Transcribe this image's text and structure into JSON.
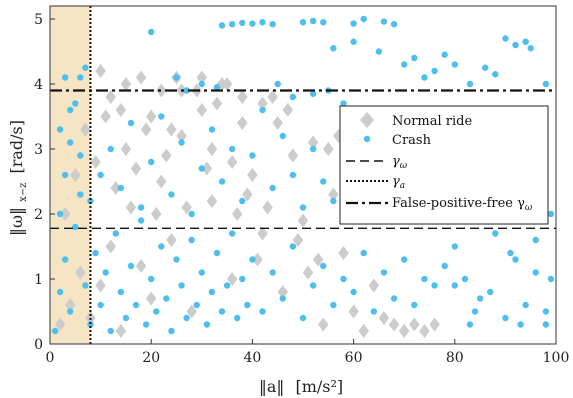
{
  "chart_data": {
    "type": "scatter",
    "xlim": [
      0,
      100
    ],
    "ylim": [
      0,
      5.2
    ],
    "xticks": [
      0,
      20,
      40,
      60,
      80,
      100
    ],
    "yticks": [
      0,
      1,
      2,
      3,
      4,
      5
    ],
    "xticks_label": [
      "0",
      "20",
      "40",
      "60",
      "80",
      "100"
    ],
    "yticks_label": [
      "0",
      "1",
      "2",
      "3",
      "4",
      "5"
    ],
    "xlabel_main": "‖a‖",
    "xlabel_unit": "[m/s²]",
    "ylabel_main": "‖ω‖",
    "ylabel_sub": "x−z",
    "ylabel_unit": "[rad/s]",
    "grid": false,
    "legend_position": "right",
    "colors": {
      "normal": "#cccccc",
      "crash": "#4dbeee",
      "shade": "#f2dcb0"
    },
    "shaded_region": {
      "x": [
        0,
        8
      ],
      "y": [
        0,
        5.2
      ]
    },
    "threshold_lines": {
      "gamma_omega": 1.78,
      "gamma_a": 8,
      "false_positive_free_gamma_omega": 3.9
    },
    "legend": {
      "normal": "Normal ride",
      "crash": "Crash",
      "gamma_omega": "γ",
      "gamma_omega_sub": "ω",
      "gamma_a": "γ",
      "gamma_a_sub": "a",
      "fpf_text": "False-positive-free γ",
      "fpf_sub": "ω"
    },
    "series": [
      {
        "name": "Normal ride",
        "marker": "diamond",
        "points": [
          [
            2,
            0.3
          ],
          [
            4,
            0.6
          ],
          [
            6,
            1.1
          ],
          [
            8,
            0.4
          ],
          [
            10,
            0.9
          ],
          [
            12,
            1.5
          ],
          [
            14,
            0.2
          ],
          [
            16,
            2.1
          ],
          [
            18,
            1.2
          ],
          [
            20,
            0.7
          ],
          [
            22,
            2.5
          ],
          [
            24,
            1.6
          ],
          [
            26,
            3.2
          ],
          [
            28,
            0.5
          ],
          [
            30,
            3.6
          ],
          [
            32,
            2.2
          ],
          [
            34,
            4.0
          ],
          [
            36,
            1.0
          ],
          [
            38,
            3.4
          ],
          [
            40,
            2.6
          ],
          [
            42,
            1.7
          ],
          [
            44,
            3.8
          ],
          [
            46,
            0.8
          ],
          [
            48,
            2.9
          ],
          [
            50,
            1.9
          ],
          [
            52,
            3.1
          ],
          [
            54,
            0.3
          ],
          [
            56,
            2.3
          ],
          [
            58,
            1.4
          ],
          [
            60,
            0.5
          ],
          [
            62,
            0.2
          ],
          [
            64,
            0.9
          ],
          [
            66,
            0.4
          ],
          [
            68,
            0.3
          ],
          [
            70,
            0.2
          ],
          [
            72,
            0.3
          ],
          [
            74,
            0.2
          ],
          [
            76,
            0.3
          ],
          [
            25,
            4.1
          ],
          [
            30,
            4.1
          ],
          [
            35,
            4.0
          ],
          [
            38,
            3.8
          ],
          [
            42,
            3.7
          ],
          [
            47,
            3.6
          ],
          [
            29,
            3.9
          ],
          [
            33,
            3.7
          ],
          [
            45,
            3.4
          ],
          [
            55,
            3.0
          ],
          [
            57,
            3.2
          ],
          [
            26,
            3.9
          ],
          [
            3,
            2.0
          ],
          [
            5,
            2.6
          ],
          [
            7,
            3.3
          ],
          [
            9,
            2.8
          ],
          [
            11,
            3.5
          ],
          [
            13,
            2.4
          ],
          [
            15,
            3.0
          ],
          [
            17,
            2.7
          ],
          [
            19,
            3.3
          ],
          [
            21,
            2.0
          ],
          [
            23,
            2.9
          ],
          [
            27,
            2.1
          ],
          [
            31,
            2.7
          ],
          [
            37,
            2.0
          ],
          [
            39,
            2.3
          ],
          [
            41,
            1.3
          ],
          [
            43,
            2.1
          ],
          [
            49,
            1.6
          ],
          [
            51,
            1.1
          ],
          [
            53,
            1.3
          ],
          [
            15,
            4.0
          ],
          [
            12,
            3.8
          ],
          [
            18,
            4.1
          ],
          [
            22,
            3.9
          ],
          [
            10,
            4.2
          ],
          [
            14,
            3.6
          ],
          [
            20,
            3.5
          ],
          [
            24,
            3.3
          ],
          [
            32,
            3.0
          ],
          [
            36,
            2.8
          ]
        ]
      },
      {
        "name": "Crash",
        "marker": "circle",
        "points": [
          [
            1,
            0.2
          ],
          [
            2,
            0.8
          ],
          [
            3,
            1.3
          ],
          [
            4,
            0.5
          ],
          [
            5,
            1.8
          ],
          [
            6,
            2.3
          ],
          [
            7,
            0.9
          ],
          [
            8,
            0.3
          ],
          [
            9,
            1.4
          ],
          [
            10,
            0.6
          ],
          [
            11,
            1.1
          ],
          [
            12,
            0.2
          ],
          [
            13,
            1.7
          ],
          [
            14,
            0.8
          ],
          [
            15,
            0.4
          ],
          [
            16,
            1.2
          ],
          [
            17,
            0.6
          ],
          [
            18,
            1.9
          ],
          [
            19,
            0.3
          ],
          [
            20,
            1.0
          ],
          [
            21,
            0.5
          ],
          [
            22,
            1.5
          ],
          [
            23,
            0.7
          ],
          [
            24,
            0.2
          ],
          [
            25,
            1.3
          ],
          [
            26,
            0.9
          ],
          [
            27,
            0.4
          ],
          [
            28,
            1.6
          ],
          [
            29,
            0.6
          ],
          [
            30,
            1.1
          ],
          [
            31,
            0.3
          ],
          [
            32,
            0.8
          ],
          [
            33,
            1.4
          ],
          [
            34,
            0.5
          ],
          [
            35,
            0.9
          ],
          [
            36,
            1.7
          ],
          [
            37,
            0.4
          ],
          [
            38,
            1.0
          ],
          [
            39,
            0.6
          ],
          [
            40,
            1.3
          ],
          [
            42,
            0.5
          ],
          [
            44,
            1.1
          ],
          [
            46,
            0.7
          ],
          [
            48,
            1.5
          ],
          [
            50,
            0.4
          ],
          [
            52,
            0.9
          ],
          [
            54,
            1.2
          ],
          [
            56,
            0.6
          ],
          [
            58,
            1.0
          ],
          [
            60,
            0.8
          ],
          [
            62,
            1.4
          ],
          [
            64,
            0.5
          ],
          [
            66,
            1.1
          ],
          [
            68,
            0.7
          ],
          [
            70,
            1.3
          ],
          [
            72,
            0.6
          ],
          [
            74,
            1.0
          ],
          [
            76,
            0.9
          ],
          [
            78,
            1.2
          ],
          [
            80,
            1.5
          ],
          [
            82,
            1.0
          ],
          [
            85,
            0.7
          ],
          [
            88,
            1.7
          ],
          [
            90,
            0.4
          ],
          [
            92,
            1.3
          ],
          [
            94,
            0.6
          ],
          [
            96,
            1.1
          ],
          [
            98,
            0.3
          ],
          [
            99,
            1.0
          ],
          [
            84,
            0.5
          ],
          [
            2,
            2.0
          ],
          [
            3,
            2.6
          ],
          [
            4,
            3.1
          ],
          [
            5,
            3.7
          ],
          [
            6,
            4.1
          ],
          [
            7,
            4.25
          ],
          [
            3,
            4.1
          ],
          [
            4,
            3.6
          ],
          [
            6,
            2.9
          ],
          [
            2,
            3.3
          ],
          [
            8,
            2.2
          ],
          [
            10,
            2.6
          ],
          [
            12,
            3.0
          ],
          [
            14,
            2.4
          ],
          [
            16,
            3.4
          ],
          [
            18,
            2.1
          ],
          [
            20,
            2.8
          ],
          [
            22,
            3.5
          ],
          [
            24,
            2.3
          ],
          [
            26,
            3.1
          ],
          [
            28,
            2.0
          ],
          [
            30,
            2.7
          ],
          [
            32,
            3.3
          ],
          [
            34,
            2.5
          ],
          [
            36,
            3.0
          ],
          [
            38,
            2.2
          ],
          [
            40,
            2.9
          ],
          [
            42,
            3.6
          ],
          [
            44,
            2.4
          ],
          [
            46,
            3.2
          ],
          [
            48,
            2.6
          ],
          [
            50,
            2.1
          ],
          [
            52,
            3.0
          ],
          [
            54,
            2.5
          ],
          [
            56,
            2.2
          ],
          [
            58,
            2.8
          ],
          [
            60,
            1.9
          ],
          [
            62,
            2.4
          ],
          [
            65,
            2.7
          ],
          [
            68,
            2.0
          ],
          [
            70,
            2.3
          ],
          [
            72,
            2.5
          ],
          [
            75,
            2.1
          ],
          [
            78,
            2.6
          ],
          [
            80,
            2.2
          ],
          [
            82,
            2.0
          ],
          [
            86,
            2.4
          ],
          [
            89,
            2.2
          ],
          [
            93,
            2.0
          ],
          [
            97,
            2.3
          ],
          [
            34,
            4.9
          ],
          [
            36,
            4.92
          ],
          [
            38,
            4.94
          ],
          [
            40,
            4.93
          ],
          [
            42,
            4.95
          ],
          [
            44,
            4.92
          ],
          [
            50,
            4.95
          ],
          [
            52,
            4.97
          ],
          [
            54,
            4.95
          ],
          [
            60,
            4.93
          ],
          [
            66,
            4.96
          ],
          [
            68,
            4.92
          ],
          [
            62,
            5.0
          ],
          [
            56,
            4.55
          ],
          [
            60,
            4.65
          ],
          [
            65,
            4.5
          ],
          [
            70,
            4.3
          ],
          [
            72,
            4.4
          ],
          [
            74,
            4.1
          ],
          [
            76,
            4.2
          ],
          [
            80,
            4.3
          ],
          [
            83,
            4.0
          ],
          [
            86,
            4.25
          ],
          [
            88,
            4.15
          ],
          [
            90,
            4.7
          ],
          [
            92,
            4.6
          ],
          [
            94,
            4.65
          ],
          [
            95,
            4.55
          ],
          [
            98,
            4.0
          ],
          [
            78,
            4.45
          ],
          [
            20,
            4.8
          ],
          [
            25,
            4.1
          ],
          [
            27,
            3.9
          ],
          [
            30,
            4.0
          ],
          [
            33,
            3.95
          ],
          [
            45,
            4.0
          ],
          [
            48,
            3.8
          ],
          [
            52,
            3.85
          ],
          [
            55,
            3.9
          ],
          [
            58,
            3.7
          ],
          [
            62,
            3.6
          ],
          [
            64,
            3.4
          ],
          [
            66,
            3.5
          ],
          [
            68,
            3.2
          ],
          [
            70,
            3.0
          ],
          [
            73,
            3.3
          ],
          [
            75,
            2.9
          ],
          [
            79,
            3.1
          ],
          [
            84,
            2.8
          ],
          [
            87,
            3.0
          ],
          [
            91,
            3.2
          ],
          [
            95,
            2.9
          ],
          [
            99,
            2.0
          ],
          [
            96,
            1.6
          ],
          [
            98,
            0.5
          ],
          [
            93,
            0.3
          ],
          [
            91,
            1.4
          ],
          [
            87,
            0.8
          ],
          [
            83,
            0.3
          ],
          [
            80,
            0.9
          ]
        ]
      }
    ]
  }
}
